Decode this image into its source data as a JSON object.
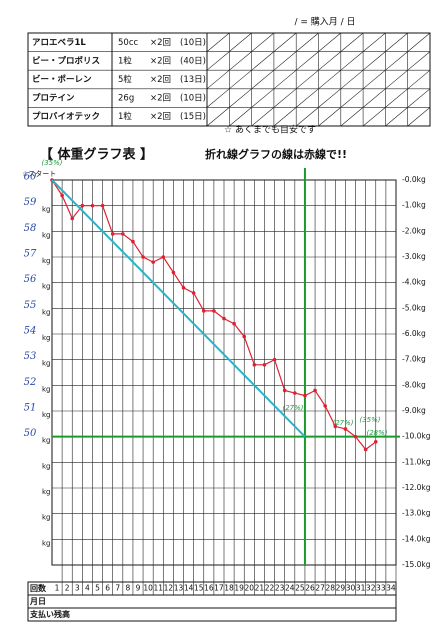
{
  "header": {
    "purchase_note": "/ = 購入月 / 日"
  },
  "table": {
    "rows": [
      [
        "アロエベラ1L",
        "50cc",
        "×2回",
        "(10日)"
      ],
      [
        "ビー・プロポリス",
        "1粒",
        "×2回",
        "(40日)"
      ],
      [
        "ビー・ポーレン",
        "5粒",
        "×2回",
        "(13日)"
      ],
      [
        "プロテイン",
        "26g",
        "×2回",
        "(10日)"
      ],
      [
        "プロバイオテック",
        "1粒",
        "×2回",
        "(15日)"
      ]
    ]
  },
  "note": "☆ あくまでも目安です",
  "chart_data": {
    "type": "line",
    "title": "【 体重グラフ表 】",
    "subtitle": "折れ線グラフの線は赤線で!!",
    "start_label": "☆スタート",
    "x": [
      0,
      1,
      2,
      3,
      4,
      5,
      6,
      7,
      8,
      9,
      10,
      11,
      12,
      13,
      14,
      15,
      16,
      17,
      18,
      19,
      20,
      21,
      22,
      23,
      24,
      25,
      26,
      27,
      28,
      29,
      30,
      31,
      32
    ],
    "series": [
      {
        "color": "#e02030",
        "values": [
          60,
          59.4,
          58.5,
          59.0,
          59.0,
          59.0,
          57.9,
          57.9,
          57.6,
          57.0,
          56.8,
          57.0,
          56.4,
          55.8,
          55.6,
          54.9,
          54.9,
          54.6,
          54.4,
          53.9,
          52.8,
          52.8,
          53.0,
          51.8,
          51.7,
          51.6,
          51.8,
          51.2,
          50.4,
          50.3,
          50.0,
          49.5,
          49.8
        ]
      },
      {
        "color": "#2ab4c8",
        "x": [
          0,
          25
        ],
        "values": [
          60,
          50
        ]
      }
    ],
    "xlim": [
      0,
      34
    ],
    "xticks": [
      1,
      2,
      3,
      4,
      5,
      6,
      7,
      8,
      9,
      10,
      11,
      12,
      13,
      14,
      15,
      16,
      17,
      18,
      19,
      20,
      21,
      22,
      23,
      24,
      25,
      26,
      27,
      28,
      29,
      30,
      31,
      32,
      33,
      34
    ],
    "ylim": [
      45,
      60
    ],
    "yticks": [
      60,
      59,
      58,
      57,
      56,
      55,
      54,
      53,
      52,
      51,
      50
    ],
    "y_unit": "kg",
    "y2lim": [
      -15,
      0
    ],
    "y2ticks": [
      {
        "value": 0,
        "label": "-0.0kg"
      },
      {
        "value": -1,
        "label": "-1.0kg"
      },
      {
        "value": -2,
        "label": "-2.0kg"
      },
      {
        "value": -3,
        "label": "-3.0kg"
      },
      {
        "value": -4,
        "label": "-4.0kg"
      },
      {
        "value": -5,
        "label": "-5.0kg"
      },
      {
        "value": -6,
        "label": "-6.0kg"
      },
      {
        "value": -7,
        "label": "-7.0kg"
      },
      {
        "value": -8,
        "label": "-8.0kg"
      },
      {
        "value": -9,
        "label": "-9.0kg"
      },
      {
        "value": -10,
        "label": "-10.0kg"
      },
      {
        "value": -11,
        "label": "-11.0kg"
      },
      {
        "value": -12,
        "label": "-12.0kg"
      },
      {
        "value": -13,
        "label": "-13.0kg"
      },
      {
        "value": -14,
        "label": "-14.0kg"
      },
      {
        "value": -15,
        "label": "-15.0kg"
      }
    ],
    "reference_x": 25,
    "reference_y": 50,
    "reference_color": "#1a9a2a",
    "annotations": [
      "(35%)",
      "(27%)",
      "(27%)",
      "(28%)",
      "(35%)"
    ],
    "footer_rows": [
      "回数",
      "月日",
      "支払い残高"
    ]
  }
}
